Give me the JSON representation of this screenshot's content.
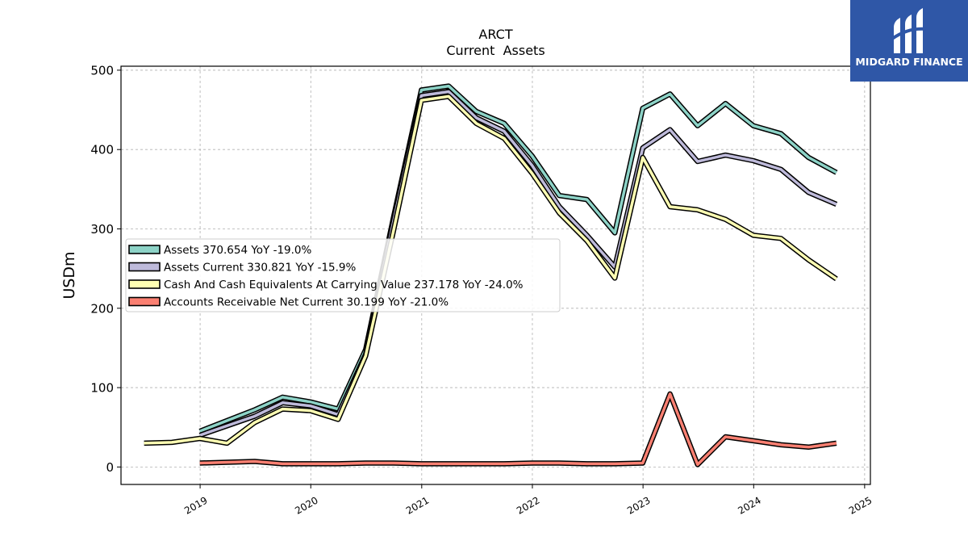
{
  "chart_data": {
    "type": "line",
    "title": "ARCT",
    "subtitle": "Current  Assets",
    "ylabel": "USDm",
    "xlabel": "",
    "ylim": [
      -22,
      505
    ],
    "xlim": [
      "2018-04-15",
      "2025-01-20"
    ],
    "yticks": [
      0,
      100,
      200,
      300,
      400,
      500
    ],
    "xticks": [
      "2019",
      "2020",
      "2021",
      "2022",
      "2023",
      "2024",
      "2025"
    ],
    "grid": true,
    "legend_position": "center-left",
    "series": [
      {
        "name": "Assets",
        "legend": "Assets  370.654 YoY -19.0%",
        "color": "#8dd3c7",
        "x": [
          "2018-12-31",
          "2019-06-30",
          "2019-09-30",
          "2019-12-31",
          "2020-03-31",
          "2020-06-30",
          "2020-09-30",
          "2020-12-31",
          "2021-03-31",
          "2021-06-30",
          "2021-09-30",
          "2021-12-31",
          "2022-03-31",
          "2022-06-30",
          "2022-09-30",
          "2022-12-31",
          "2023-03-31",
          "2023-06-30",
          "2023-09-30",
          "2023-12-31",
          "2024-03-31",
          "2024-06-30",
          "2024-09-30"
        ],
        "y": [
          45,
          72,
          88,
          82,
          73,
          148,
          315,
          475,
          480,
          448,
          433,
          392,
          342,
          337,
          295,
          452,
          470,
          430,
          458,
          430,
          420,
          390,
          371
        ]
      },
      {
        "name": "Assets Current",
        "legend": "Assets Current  330.821 YoY -15.9%",
        "color": "#bebada",
        "x": [
          "2018-12-31",
          "2019-06-30",
          "2019-09-30",
          "2019-12-31",
          "2020-03-31",
          "2020-06-30",
          "2020-09-30",
          "2020-12-31",
          "2021-03-31",
          "2021-06-30",
          "2021-09-30",
          "2021-12-31",
          "2022-03-31",
          "2022-06-30",
          "2022-09-30",
          "2022-12-31",
          "2023-03-31",
          "2023-06-30",
          "2023-09-30",
          "2023-12-31",
          "2024-03-31",
          "2024-06-30",
          "2024-09-30"
        ],
        "y": [
          40,
          64,
          81,
          77,
          66,
          142,
          310,
          468,
          473,
          440,
          423,
          380,
          328,
          292,
          252,
          402,
          425,
          385,
          393,
          386,
          375,
          346,
          331
        ]
      },
      {
        "name": "Cash And Cash Equivalents At Carrying Value",
        "legend": "Cash And Cash Equivalents At Carrying Value  237.178 YoY -24.0%",
        "color": "#ffffb3",
        "x": [
          "2018-06-30",
          "2018-09-30",
          "2018-12-31",
          "2019-03-31",
          "2019-06-30",
          "2019-09-30",
          "2019-12-31",
          "2020-03-31",
          "2020-06-30",
          "2020-09-30",
          "2020-12-31",
          "2021-03-31",
          "2021-06-30",
          "2021-09-30",
          "2021-12-31",
          "2022-03-31",
          "2022-06-30",
          "2022-09-30",
          "2022-12-31",
          "2023-03-31",
          "2023-06-30",
          "2023-09-30",
          "2023-12-31",
          "2024-03-31",
          "2024-06-30",
          "2024-09-30"
        ],
        "y": [
          30,
          31,
          36,
          30,
          56,
          73,
          71,
          60,
          140,
          298,
          462,
          467,
          433,
          414,
          370,
          320,
          285,
          238,
          390,
          328,
          324,
          312,
          292,
          288,
          261,
          237
        ]
      },
      {
        "name": "Accounts Receivable Net Current",
        "legend": "Accounts Receivable Net Current  30.199 YoY -21.0%",
        "color": "#fb8072",
        "x": [
          "2018-12-31",
          "2019-06-30",
          "2019-09-30",
          "2019-12-31",
          "2020-03-31",
          "2020-06-30",
          "2020-09-30",
          "2020-12-31",
          "2021-03-31",
          "2021-06-30",
          "2021-09-30",
          "2021-12-31",
          "2022-03-31",
          "2022-06-30",
          "2022-09-30",
          "2022-12-31",
          "2023-03-31",
          "2023-06-30",
          "2023-09-30",
          "2023-12-31",
          "2024-03-31",
          "2024-06-30",
          "2024-09-30"
        ],
        "y": [
          5,
          7,
          4,
          4,
          4,
          5,
          5,
          4,
          4,
          4,
          4,
          5,
          5,
          4,
          4,
          5,
          92,
          3,
          38,
          33,
          28,
          25,
          30
        ]
      }
    ]
  },
  "watermark": {
    "text": "MIDGARD FINANCE",
    "color": "#2f57a7"
  }
}
